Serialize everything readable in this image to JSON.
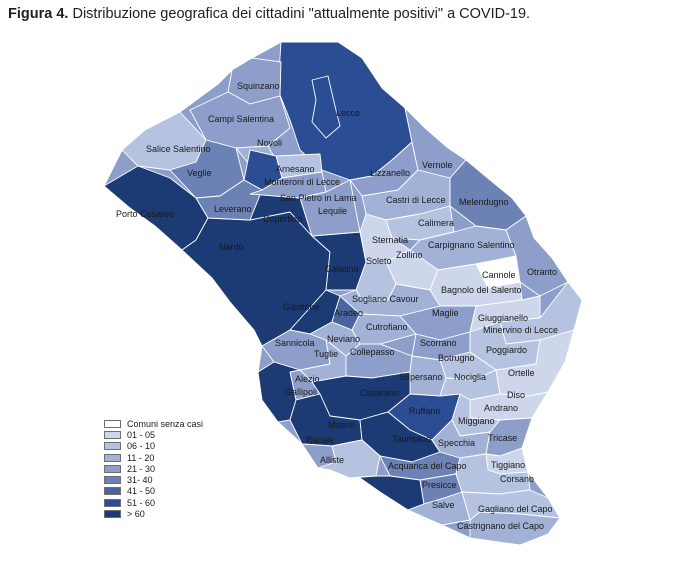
{
  "caption": {
    "figure_label": "Figura 4.",
    "title": "Distribuzione  geografica dei cittadini \"attualmente positivi\" a COVID-19."
  },
  "palette": {
    "c0": "#ffffff",
    "c1": "#cdd6ea",
    "c2": "#b6c3e0",
    "c3": "#a2b2d6",
    "c4": "#8c9ec9",
    "c5": "#6c81b4",
    "c6": "#4a649f",
    "c7": "#2b4d93",
    "c8": "#1c3a73"
  },
  "legend": [
    {
      "label": "Comuni senza casi",
      "class": "c0"
    },
    {
      "label": "01 - 05",
      "class": "c1"
    },
    {
      "label": "06 - 10",
      "class": "c2"
    },
    {
      "label": "11 - 20",
      "class": "c3"
    },
    {
      "label": "21 - 30",
      "class": "c4"
    },
    {
      "label": "31- 40",
      "class": "c5"
    },
    {
      "label": "41 - 50",
      "class": "c6"
    },
    {
      "label": "51 - 60",
      "class": "c7"
    },
    {
      "label": "> 60",
      "class": "c8"
    }
  ],
  "places": [
    {
      "name": "Squinzano",
      "class": "c4"
    },
    {
      "name": "Lecce",
      "class": "c7"
    },
    {
      "name": "Campi Salentina",
      "class": "c4"
    },
    {
      "name": "Novoli",
      "class": "c3"
    },
    {
      "name": "Salice Salentino",
      "class": "c2"
    },
    {
      "name": "Arnesano",
      "class": "c2"
    },
    {
      "name": "Vernole",
      "class": "c4"
    },
    {
      "name": "Veglie",
      "class": "c5"
    },
    {
      "name": "Monteroni di Lecce",
      "class": "c7"
    },
    {
      "name": "Lizzanello",
      "class": "c4"
    },
    {
      "name": "Castri di Lecce",
      "class": "c3"
    },
    {
      "name": "Melendugno",
      "class": "c5"
    },
    {
      "name": "Porto Cesareo",
      "class": "c8"
    },
    {
      "name": "Leverano",
      "class": "c5"
    },
    {
      "name": "San Pietro in Lama",
      "class": "c4"
    },
    {
      "name": "Copertino",
      "class": "c8"
    },
    {
      "name": "Lequile",
      "class": "c4"
    },
    {
      "name": "Calimera",
      "class": "c2"
    },
    {
      "name": "Sternatia",
      "class": "c1"
    },
    {
      "name": "Carpignano Salentino",
      "class": "c3"
    },
    {
      "name": "Nardò",
      "class": "c8"
    },
    {
      "name": "Zollino",
      "class": "c1"
    },
    {
      "name": "Soleto",
      "class": "c2"
    },
    {
      "name": "Galatina",
      "class": "c8"
    },
    {
      "name": "Cannole",
      "class": "c0"
    },
    {
      "name": "Otranto",
      "class": "c4"
    },
    {
      "name": "Bagnolo del Salento",
      "class": "c1"
    },
    {
      "name": "Sogliano Cavour",
      "class": "c3"
    },
    {
      "name": "Galatone",
      "class": "c8"
    },
    {
      "name": "Aradeo",
      "class": "c6"
    },
    {
      "name": "Giuggianello",
      "class": "c1"
    },
    {
      "name": "Maglie",
      "class": "c4"
    },
    {
      "name": "Minervino di Lecce",
      "class": "c2"
    },
    {
      "name": "Cutrofiano",
      "class": "c3"
    },
    {
      "name": "Sannicola",
      "class": "c4"
    },
    {
      "name": "Neviano",
      "class": "c3"
    },
    {
      "name": "Scorrano",
      "class": "c4"
    },
    {
      "name": "Poggiardo",
      "class": "c2"
    },
    {
      "name": "Tuglie",
      "class": "c3"
    },
    {
      "name": "Collepasso",
      "class": "c4"
    },
    {
      "name": "Botrugno",
      "class": "c2"
    },
    {
      "name": "Alezio",
      "class": "c4"
    },
    {
      "name": "Supersano",
      "class": "c3"
    },
    {
      "name": "Nociglia",
      "class": "c2"
    },
    {
      "name": "Ortelle",
      "class": "c1"
    },
    {
      "name": "Gallipoli",
      "class": "c8"
    },
    {
      "name": "Casarano",
      "class": "c8"
    },
    {
      "name": "Diso",
      "class": "c1"
    },
    {
      "name": "Ruffano",
      "class": "c7"
    },
    {
      "name": "Andrano",
      "class": "c1"
    },
    {
      "name": "Miggiano",
      "class": "c2"
    },
    {
      "name": "Matino",
      "class": "c8"
    },
    {
      "name": "Racale",
      "class": "c4"
    },
    {
      "name": "Taurisano",
      "class": "c8"
    },
    {
      "name": "Specchia",
      "class": "c3"
    },
    {
      "name": "Tricase",
      "class": "c4"
    },
    {
      "name": "Alliste",
      "class": "c2"
    },
    {
      "name": "Acquarica del Capo",
      "class": "c5"
    },
    {
      "name": "Tiggiano",
      "class": "c1"
    },
    {
      "name": "Presicce",
      "class": "c5"
    },
    {
      "name": "Corsano",
      "class": "c2"
    },
    {
      "name": "Salve",
      "class": "c3"
    },
    {
      "name": "Gagliano del Capo",
      "class": "c2"
    },
    {
      "name": "Castrignano del Capo",
      "class": "c3"
    }
  ]
}
